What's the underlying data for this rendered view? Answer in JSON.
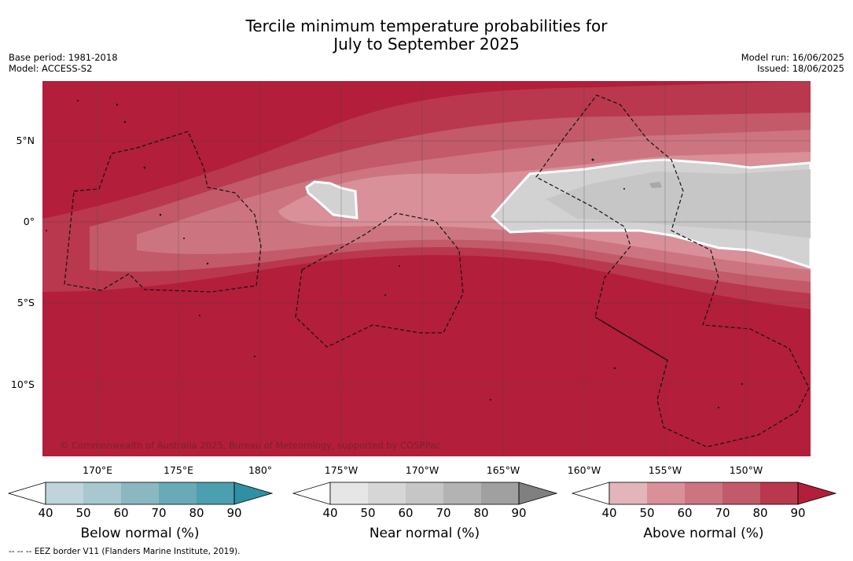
{
  "header": {
    "title_line1": "Tercile minimum temperature probabilities for",
    "title_line2": "July to September 2025",
    "base_period": "Base period: 1981-2018",
    "model": "Model: ACCESS-S2",
    "model_run": "Model run: 16/06/2025",
    "issued": "Issued: 18/06/2025"
  },
  "map": {
    "lat_labels": [
      "5°N",
      "0°",
      "5°S",
      "10°S"
    ],
    "lon_labels": [
      "170°E",
      "175°E",
      "180°",
      "175°W",
      "170°W",
      "165°W",
      "160°W",
      "155°W",
      "150°W"
    ],
    "copyright": "© Commonwealth of Australia 2025, Bureau of Meteorology, supported by COSPPac",
    "background_color": "#b31e3a"
  },
  "colorbars": [
    {
      "caption": "Below normal (%)",
      "ticks": [
        "40",
        "50",
        "60",
        "70",
        "80",
        "90"
      ],
      "colors": [
        "#bfd4db",
        "#a7c8cf",
        "#8bb7c1",
        "#6aa9b6",
        "#4c9fae",
        "#2f8fa3"
      ]
    },
    {
      "caption": "Near normal (%)",
      "ticks": [
        "40",
        "50",
        "60",
        "70",
        "80",
        "90"
      ],
      "colors": [
        "#e6e6e6",
        "#d6d6d6",
        "#c6c6c6",
        "#b3b3b3",
        "#a0a0a0",
        "#808080"
      ]
    },
    {
      "caption": "Above normal (%)",
      "ticks": [
        "40",
        "50",
        "60",
        "70",
        "80",
        "90"
      ],
      "colors": [
        "#e2b5bb",
        "#d99099",
        "#cc7580",
        "#c25a69",
        "#b9384e",
        "#b31e3a"
      ]
    }
  ],
  "footnote": "--  --  -- EEZ border V11 (Flanders Marine Institute, 2019)."
}
